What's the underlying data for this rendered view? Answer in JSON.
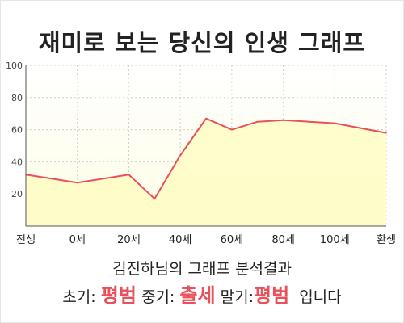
{
  "title": "재미로 보는 당신의 인생 그래프",
  "chart_data": {
    "type": "area",
    "x_ticks": [
      {
        "x": -20,
        "label": "전생"
      },
      {
        "x": 0,
        "label": "0세"
      },
      {
        "x": 20,
        "label": "20세"
      },
      {
        "x": 40,
        "label": "40세"
      },
      {
        "x": 60,
        "label": "60세"
      },
      {
        "x": 80,
        "label": "80세"
      },
      {
        "x": 100,
        "label": "100세"
      },
      {
        "x": 120,
        "label": "환생"
      }
    ],
    "xlim": [
      -20,
      120
    ],
    "ylim": [
      0,
      100
    ],
    "y_ticks": [
      20,
      40,
      60,
      80,
      100
    ],
    "series": [
      {
        "points": [
          [
            -20,
            32
          ],
          [
            0,
            27
          ],
          [
            20,
            32
          ],
          [
            30,
            17
          ],
          [
            40,
            44
          ],
          [
            50,
            67
          ],
          [
            60,
            60
          ],
          [
            70,
            65
          ],
          [
            80,
            66
          ],
          [
            90,
            65
          ],
          [
            100,
            64
          ],
          [
            110,
            61
          ],
          [
            120,
            58
          ]
        ]
      }
    ],
    "line_color": "#e8505b",
    "fill_color": "#fefdc8",
    "grid": true
  },
  "result": {
    "line1": "김진하님의 그래프 분석결과",
    "early_label": "초기:",
    "early_value": "평범",
    "mid_label": "중기:",
    "mid_value": "출세",
    "late_label": "말기:",
    "late_value": "평범",
    "ending": "입니다"
  }
}
